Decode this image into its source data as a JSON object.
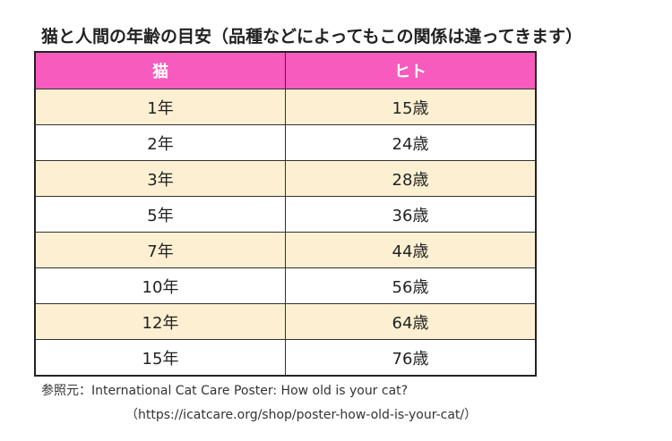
{
  "title": "猫と人間の年齢の目安（品種などによってもこの関係は違ってきます）",
  "table": {
    "headers": [
      "猫",
      "ヒト"
    ],
    "rows": [
      [
        "1年",
        "15歳"
      ],
      [
        "2年",
        "24歳"
      ],
      [
        "3年",
        "28歳"
      ],
      [
        "5年",
        "36歳"
      ],
      [
        "7年",
        "44歳"
      ],
      [
        "10年",
        "56歳"
      ],
      [
        "12年",
        "64歳"
      ],
      [
        "15年",
        "76歳"
      ]
    ]
  },
  "colors": {
    "header_bg": "#f65bbd",
    "odd_row_bg": "#fdf0d2",
    "even_row_bg": "#ffffff"
  },
  "source": {
    "label": "参照元：International Cat Care Poster: How old is your cat?",
    "url": "（https://icatcare.org/shop/poster-how-old-is-your-cat/）"
  }
}
